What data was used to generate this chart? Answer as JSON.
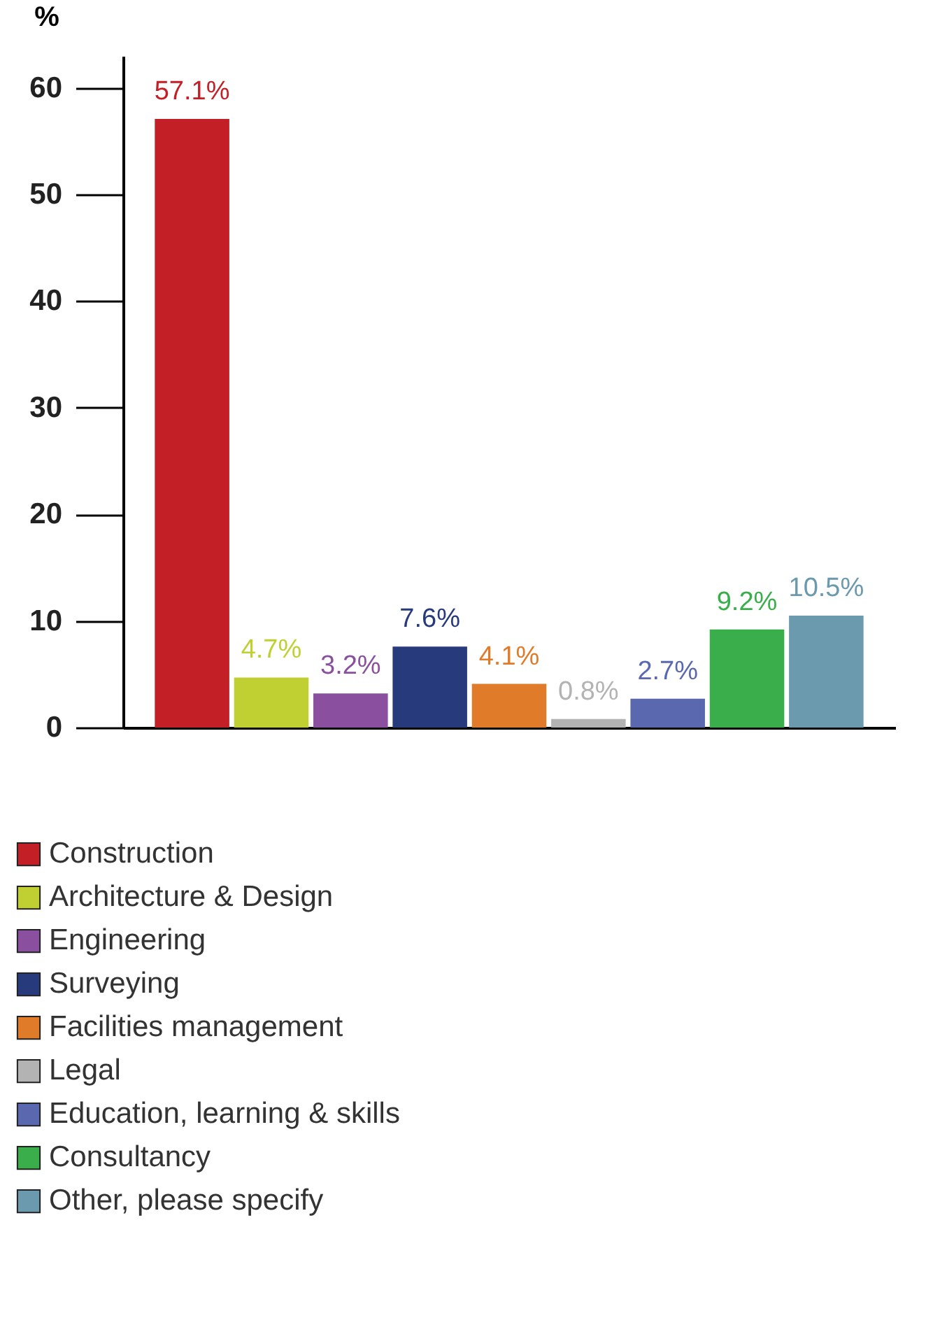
{
  "chart_data": {
    "type": "bar",
    "ylabel": "%",
    "categories": [
      null
    ],
    "series": [
      {
        "name": "Construction",
        "color": "#c22026",
        "values": [
          57.1
        ],
        "value_labels": [
          "57.1%"
        ]
      },
      {
        "name": "Architecture & Design",
        "color": "#c0d033",
        "values": [
          4.7
        ],
        "value_labels": [
          "4.7%"
        ]
      },
      {
        "name": "Engineering",
        "color": "#8a4f9e",
        "values": [
          3.2
        ],
        "value_labels": [
          "3.2%"
        ]
      },
      {
        "name": "Surveying",
        "color": "#263a7c",
        "values": [
          7.6
        ],
        "value_labels": [
          "7.6%"
        ]
      },
      {
        "name": "Facilities management",
        "color": "#e07b2a",
        "values": [
          4.1
        ],
        "value_labels": [
          "4.1%"
        ]
      },
      {
        "name": "Legal",
        "color": "#b3b3b3",
        "values": [
          0.8
        ],
        "value_labels": [
          "0.8%"
        ]
      },
      {
        "name": "Education, learning & skills",
        "color": "#5a68b0",
        "values": [
          2.7
        ],
        "value_labels": [
          "2.7%"
        ]
      },
      {
        "name": "Consultancy",
        "color": "#3aae4b",
        "values": [
          9.2
        ],
        "value_labels": [
          "9.2%"
        ]
      },
      {
        "name": "Other, please specify",
        "color": "#6b9aaf",
        "values": [
          10.5
        ],
        "value_labels": [
          "10.5%"
        ]
      }
    ],
    "ylim": [
      0,
      63
    ],
    "yticks": [
      0,
      10,
      20,
      30,
      40,
      50,
      60
    ],
    "tick_labels": "y",
    "legend": "bottom",
    "grid": false
  }
}
